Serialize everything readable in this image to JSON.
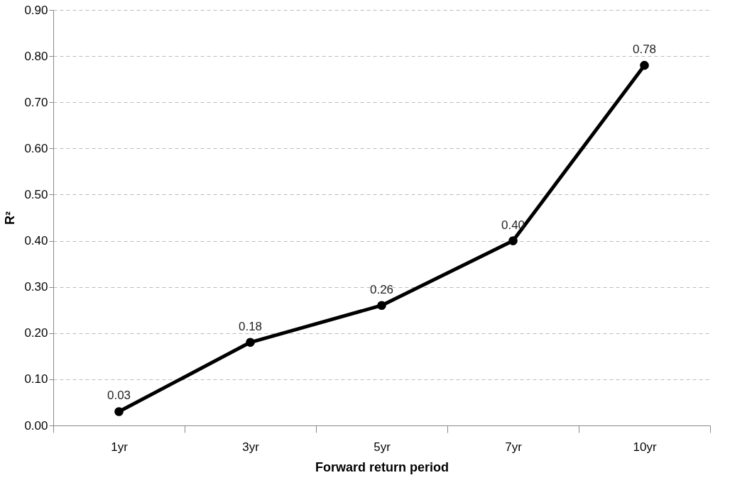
{
  "chart_data": {
    "type": "line",
    "xlabel": "Forward return period",
    "ylabel": "R²",
    "categories": [
      "1yr",
      "3yr",
      "5yr",
      "7yr",
      "10yr"
    ],
    "series": [
      {
        "color": "#000000",
        "values": [
          0.03,
          0.18,
          0.26,
          0.4,
          0.78
        ],
        "value_labels": [
          "0.03",
          "0.18",
          "0.26",
          "0.40",
          "0.78"
        ]
      }
    ],
    "ylim": [
      0,
      0.9
    ],
    "yticks": [
      {
        "value": 0,
        "label": "0.00"
      },
      {
        "value": 0.1,
        "label": "0.10"
      },
      {
        "value": 0.2,
        "label": "0.20"
      },
      {
        "value": 0.3,
        "label": "0.30"
      },
      {
        "value": 0.4,
        "label": "0.40"
      },
      {
        "value": 0.5,
        "label": "0.50"
      },
      {
        "value": 0.6,
        "label": "0.60"
      },
      {
        "value": 0.7,
        "label": "0.70"
      },
      {
        "value": 0.8,
        "label": "0.80"
      },
      {
        "value": 0.9,
        "label": "0.90"
      }
    ],
    "grid": "y",
    "marker": "circle",
    "line_style": "solid"
  }
}
